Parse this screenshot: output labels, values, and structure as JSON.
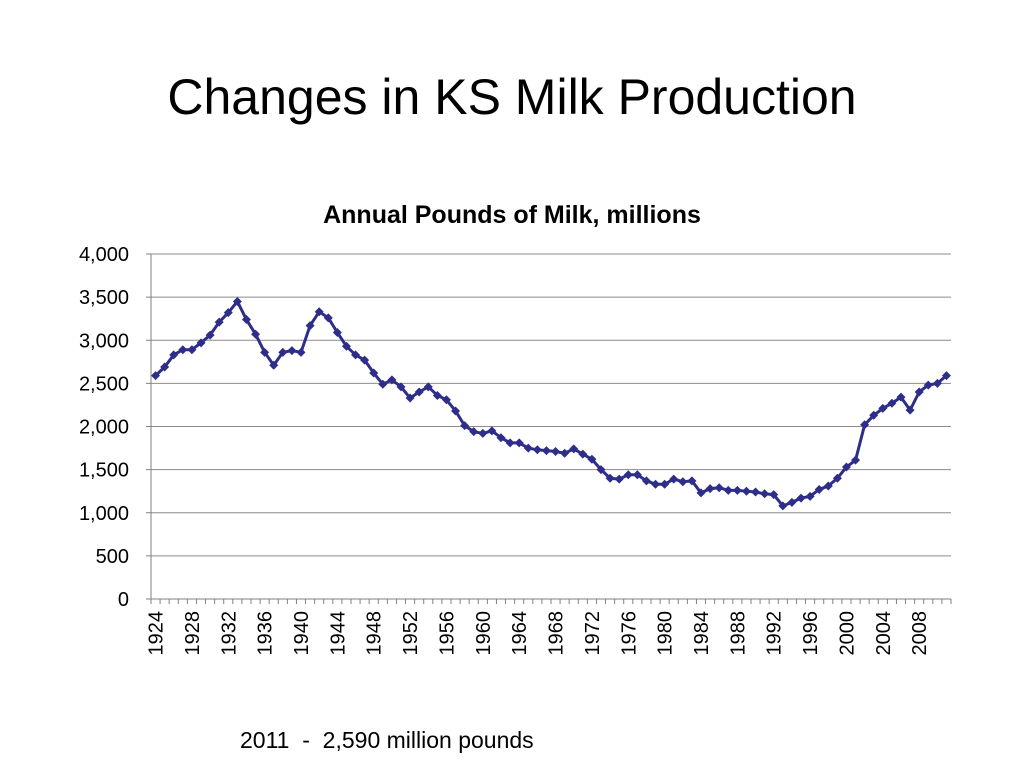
{
  "slide": {
    "title": "Changes in KS Milk Production",
    "footnote": "2011  -  2,590 million pounds"
  },
  "chart_data": {
    "type": "line",
    "title": "Annual Pounds of Milk, millions",
    "xlabel": "",
    "ylabel": "",
    "ylim": [
      0,
      4000
    ],
    "yticks": [
      0,
      500,
      1000,
      1500,
      2000,
      2500,
      3000,
      3500,
      4000
    ],
    "ytick_labels": [
      "0",
      "500",
      "1,000",
      "1,500",
      "2,000",
      "2,500",
      "3,000",
      "3,500",
      "4,000"
    ],
    "xticks": [
      1924,
      1928,
      1932,
      1936,
      1940,
      1944,
      1948,
      1952,
      1956,
      1960,
      1964,
      1968,
      1972,
      1976,
      1980,
      1984,
      1988,
      1992,
      1996,
      2000,
      2004,
      2008
    ],
    "grid": true,
    "legend": "none",
    "colors": {
      "line": "#2e2e8a",
      "grid": "#8c8c8c",
      "axis": "#808080"
    },
    "x": [
      1924,
      1925,
      1926,
      1927,
      1928,
      1929,
      1930,
      1931,
      1932,
      1933,
      1934,
      1935,
      1936,
      1937,
      1938,
      1939,
      1940,
      1941,
      1942,
      1943,
      1944,
      1945,
      1946,
      1947,
      1948,
      1949,
      1950,
      1951,
      1952,
      1953,
      1954,
      1955,
      1956,
      1957,
      1958,
      1959,
      1960,
      1961,
      1962,
      1963,
      1964,
      1965,
      1966,
      1967,
      1968,
      1969,
      1970,
      1971,
      1972,
      1973,
      1974,
      1975,
      1976,
      1977,
      1978,
      1979,
      1980,
      1981,
      1982,
      1983,
      1984,
      1985,
      1986,
      1987,
      1988,
      1989,
      1990,
      1991,
      1992,
      1993,
      1994,
      1995,
      1996,
      1997,
      1998,
      1999,
      2000,
      2001,
      2002,
      2003,
      2004,
      2005,
      2006,
      2007,
      2008,
      2009,
      2010,
      2011
    ],
    "values": [
      2590,
      2690,
      2830,
      2890,
      2890,
      2970,
      3060,
      3210,
      3320,
      3450,
      3240,
      3070,
      2860,
      2710,
      2860,
      2880,
      2860,
      3170,
      3330,
      3260,
      3090,
      2930,
      2830,
      2770,
      2620,
      2490,
      2540,
      2460,
      2330,
      2400,
      2460,
      2360,
      2310,
      2180,
      2010,
      1940,
      1920,
      1950,
      1870,
      1810,
      1810,
      1750,
      1730,
      1720,
      1710,
      1690,
      1740,
      1680,
      1620,
      1500,
      1400,
      1390,
      1440,
      1440,
      1370,
      1330,
      1330,
      1390,
      1360,
      1370,
      1230,
      1280,
      1290,
      1260,
      1260,
      1250,
      1240,
      1220,
      1210,
      1080,
      1120,
      1170,
      1190,
      1270,
      1310,
      1400,
      1530,
      1610,
      2020,
      2130,
      2210,
      2270,
      2340,
      2190,
      2400,
      2480,
      2500,
      2590
    ]
  }
}
